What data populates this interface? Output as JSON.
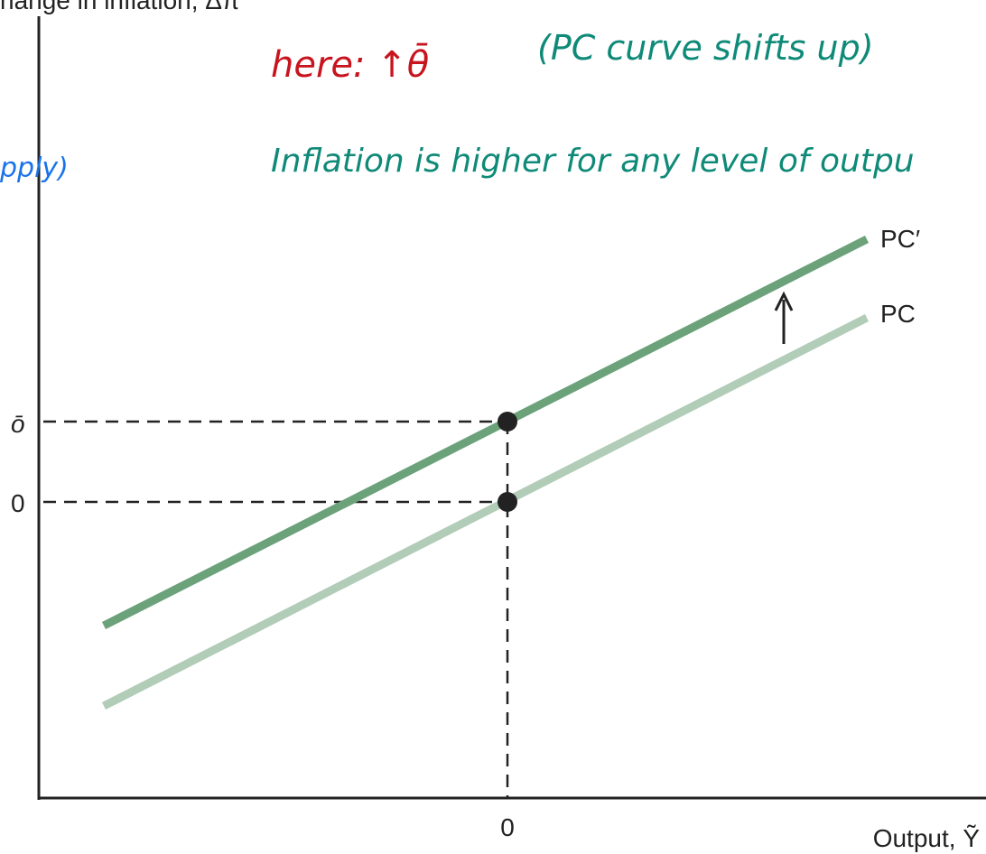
{
  "axis": {
    "y_title": "hange in inflation, Δπ",
    "x_title": "Output, Ỹ",
    "y_tick_upper": "ō",
    "y_tick_zero": "0",
    "x_tick_zero": "0"
  },
  "curves": {
    "shifted": "PC′",
    "original": "PC"
  },
  "notes": {
    "cause": "here: ↑θ̄",
    "shift": "(PC curve shifts up)",
    "meaning": "Inflation is higher for any level of outpu",
    "side": "pply)"
  }
}
